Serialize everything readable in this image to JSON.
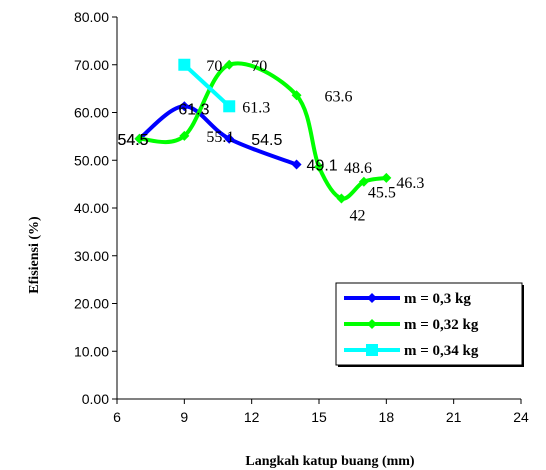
{
  "chart_data": {
    "type": "line",
    "xlabel": "Langkah katup buang (mm)",
    "ylabel": "Efisiensi (%)",
    "xlim": [
      6,
      24
    ],
    "ylim": [
      0,
      80
    ],
    "x_ticks": [
      "6",
      "9",
      "12",
      "15",
      "18",
      "21",
      "24"
    ],
    "y_ticks": [
      "0.00",
      "10.00",
      "20.00",
      "30.00",
      "40.00",
      "50.00",
      "60.00",
      "70.00",
      "80.00"
    ],
    "grid": false,
    "legend_position": "bottom-right",
    "series": [
      {
        "name": "m = 0,3 kg",
        "color": "#0000ff",
        "marker": "diamond",
        "points": [
          [
            7,
            54.5
          ],
          [
            9,
            61.3
          ],
          [
            11,
            54.5
          ],
          [
            14,
            49.1
          ]
        ],
        "data_labels": [
          "54.5",
          "61.3",
          "54.5",
          "49.1"
        ]
      },
      {
        "name": "m = 0,32 kg",
        "color": "#00ff00",
        "marker": "diamond",
        "points": [
          [
            7,
            54.5
          ],
          [
            9,
            55.1
          ],
          [
            11,
            70
          ],
          [
            14,
            63.6
          ],
          [
            15,
            48.6
          ],
          [
            16,
            42
          ],
          [
            17,
            45.5
          ],
          [
            18,
            46.3
          ]
        ],
        "data_labels": [
          "54.5",
          "55.1",
          "70",
          "63.6",
          "48.6",
          "42",
          "45.5",
          "46.3"
        ]
      },
      {
        "name": "m = 0,34 kg",
        "color": "#00ffff",
        "marker": "square",
        "points": [
          [
            9,
            70
          ],
          [
            11,
            61.3
          ]
        ],
        "data_labels": [
          "70",
          "61.3"
        ]
      }
    ]
  }
}
